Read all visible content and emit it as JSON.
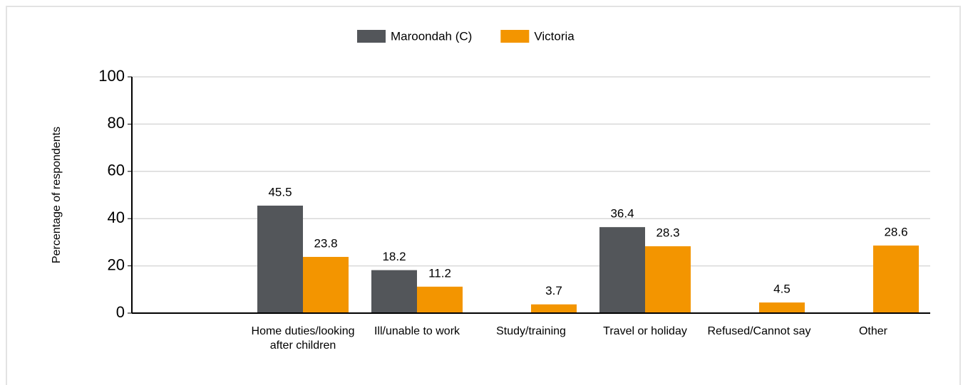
{
  "chart_data": {
    "type": "bar",
    "y_label": "Percentage of respondents",
    "categories": [
      null,
      "Home duties/looking after children",
      "Ill/unable to work",
      "Study/training",
      "Travel or holiday",
      "Refused/Cannot say",
      "Other"
    ],
    "series": [
      {
        "name": "Maroondah (C)",
        "color": "#53565a",
        "values": [
          null,
          45.5,
          18.2,
          null,
          36.4,
          null,
          null
        ]
      },
      {
        "name": "Victoria",
        "color": "#f39500",
        "values": [
          null,
          23.8,
          11.2,
          3.7,
          28.3,
          4.5,
          28.6
        ]
      }
    ],
    "ylim": [
      0,
      100
    ],
    "yticks": [
      0,
      20,
      40,
      60,
      80,
      100
    ],
    "grid": true
  }
}
